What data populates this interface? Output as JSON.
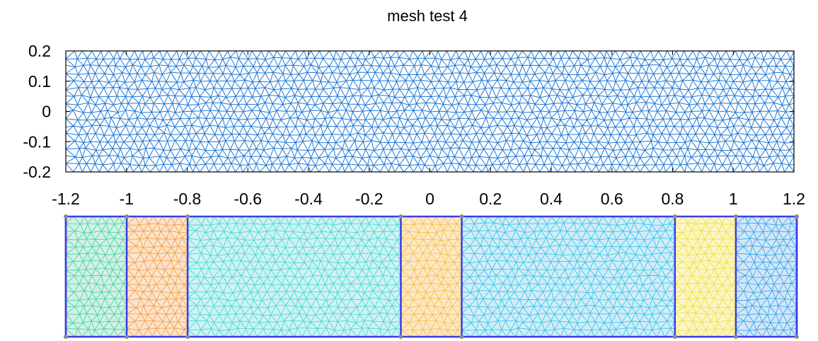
{
  "chart_data": [
    {
      "type": "mesh",
      "title": "mesh test 4",
      "xlim": [
        -1.2,
        1.2
      ],
      "ylim": [
        -0.2,
        0.2
      ],
      "xticks": [
        "-1.2",
        "-1",
        "-0.8",
        "-0.6",
        "-0.4",
        "-0.2",
        "0",
        "0.2",
        "0.4",
        "0.6",
        "0.8",
        "1",
        "1.2"
      ],
      "xtick_values": [
        -1.2,
        -1,
        -0.8,
        -0.6,
        -0.4,
        -0.2,
        0,
        0.2,
        0.4,
        0.6,
        0.8,
        1,
        1.2
      ],
      "yticks": [
        "0.2",
        "0.1",
        "0",
        "-0.1",
        "-0.2"
      ],
      "ytick_values": [
        0.2,
        0.1,
        0,
        -0.1,
        -0.2
      ],
      "grid": false,
      "mesh_color": "#1f77d4"
    },
    {
      "type": "mesh-regions",
      "boundary_color": "#3b3be8",
      "vertex_color": "#8a8a8a",
      "regions": [
        {
          "x0": -1.2,
          "x1": -1.0,
          "fill": "#d6efe6",
          "edge": "#3fd9a0"
        },
        {
          "x0": -1.0,
          "x1": -0.8,
          "fill": "#fbe3cf",
          "edge": "#f5a040"
        },
        {
          "x0": -0.8,
          "x1": -0.1,
          "fill": "#d2f1f1",
          "edge": "#42dcd6"
        },
        {
          "x0": -0.1,
          "x1": 0.1,
          "fill": "#fbe8c9",
          "edge": "#f7c040"
        },
        {
          "x0": 0.1,
          "x1": 0.8,
          "fill": "#d3ecf6",
          "edge": "#36c8ee"
        },
        {
          "x0": 0.8,
          "x1": 1.0,
          "fill": "#fbf5c8",
          "edge": "#f2e23c"
        },
        {
          "x0": 1.0,
          "x1": 1.2,
          "fill": "#d2e6f8",
          "edge": "#3aa6ea"
        }
      ]
    }
  ]
}
